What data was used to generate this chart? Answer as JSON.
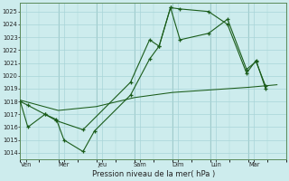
{
  "xlabel": "Pression niveau de la mer( hPa )",
  "background_color": "#cdeced",
  "grid_color": "#a8d5d8",
  "line_color": "#1a5c1a",
  "ylim": [
    1013.5,
    1025.7
  ],
  "xlim": [
    0,
    14.0
  ],
  "day_labels": [
    "Ven",
    "Mer",
    "Jeu",
    "Sam",
    "Dim",
    "Lun",
    "Mar"
  ],
  "day_positions": [
    0.3,
    2.3,
    4.3,
    6.3,
    8.3,
    10.3,
    12.3
  ],
  "yticks": [
    1014,
    1015,
    1016,
    1017,
    1018,
    1019,
    1020,
    1021,
    1022,
    1023,
    1024,
    1025
  ],
  "line1_x": [
    0.0,
    0.4,
    1.3,
    1.9,
    2.3,
    3.3,
    3.9,
    5.8,
    6.8,
    7.3,
    7.9,
    8.4,
    9.9,
    10.9,
    11.9,
    12.4,
    12.9
  ],
  "line1_y": [
    1018.0,
    1017.7,
    1017.0,
    1016.6,
    1015.0,
    1014.1,
    1015.7,
    1018.5,
    1021.3,
    1022.3,
    1025.3,
    1025.2,
    1025.0,
    1024.0,
    1020.2,
    1021.2,
    1019.0
  ],
  "line2_x": [
    0.0,
    0.4,
    1.3,
    1.9,
    3.3,
    5.8,
    6.8,
    7.3,
    7.9,
    8.4,
    9.9,
    10.9,
    11.9,
    12.4,
    12.9
  ],
  "line2_y": [
    1018.0,
    1016.0,
    1017.0,
    1016.5,
    1015.8,
    1019.5,
    1022.8,
    1022.3,
    1025.3,
    1022.8,
    1023.3,
    1024.4,
    1020.5,
    1021.1,
    1019.2
  ],
  "line3_x": [
    0.0,
    2.0,
    4.0,
    6.0,
    8.0,
    10.0,
    12.0,
    13.5
  ],
  "line3_y": [
    1018.1,
    1017.3,
    1017.6,
    1018.3,
    1018.7,
    1018.9,
    1019.1,
    1019.3
  ]
}
